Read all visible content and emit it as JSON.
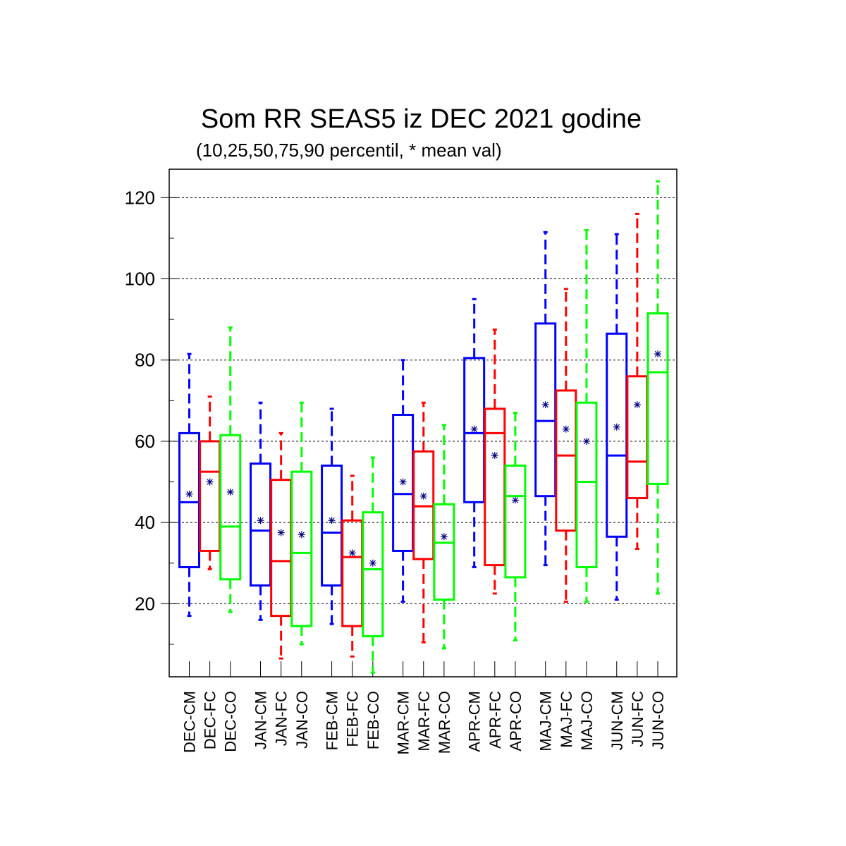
{
  "chart_data": {
    "type": "box",
    "title": "Som RR SEAS5 iz DEC 2021 godine",
    "subtitle": "(10,25,50,75,90 percentil, * mean val)",
    "ylim": [
      2,
      127
    ],
    "yticks": [
      20,
      40,
      60,
      80,
      100,
      120
    ],
    "grid": true,
    "colors": {
      "CM": "#0000ff",
      "FC": "#ff0000",
      "CO": "#00ff00",
      "mean": "#000080"
    },
    "groups": [
      {
        "month": "DEC",
        "boxes": [
          {
            "label": "DEC-CM",
            "kind": "CM",
            "p10": 17,
            "p25": 29,
            "p50": 45,
            "p75": 62,
            "p90": 81.5,
            "mean": 47
          },
          {
            "label": "DEC-FC",
            "kind": "FC",
            "p10": 28.5,
            "p25": 33,
            "p50": 52.5,
            "p75": 60,
            "p90": 71,
            "mean": 50
          },
          {
            "label": "DEC-CO",
            "kind": "CO",
            "p10": 18,
            "p25": 26,
            "p50": 39,
            "p75": 61.5,
            "p90": 88,
            "mean": 47.5
          }
        ]
      },
      {
        "month": "JAN",
        "boxes": [
          {
            "label": "JAN-CM",
            "kind": "CM",
            "p10": 16,
            "p25": 24.5,
            "p50": 38,
            "p75": 54.5,
            "p90": 69.5,
            "mean": 40.5
          },
          {
            "label": "JAN-FC",
            "kind": "FC",
            "p10": 6.5,
            "p25": 17,
            "p50": 30.5,
            "p75": 50.5,
            "p90": 62,
            "mean": 37.5
          },
          {
            "label": "JAN-CO",
            "kind": "CO",
            "p10": 10,
            "p25": 14.5,
            "p50": 32.5,
            "p75": 52.5,
            "p90": 69.5,
            "mean": 37
          }
        ]
      },
      {
        "month": "FEB",
        "boxes": [
          {
            "label": "FEB-CM",
            "kind": "CM",
            "p10": 15,
            "p25": 24.5,
            "p50": 37.5,
            "p75": 54,
            "p90": 68,
            "mean": 40.5
          },
          {
            "label": "FEB-FC",
            "kind": "FC",
            "p10": 7,
            "p25": 14.5,
            "p50": 31.5,
            "p75": 40.5,
            "p90": 51.5,
            "mean": 32.5
          },
          {
            "label": "FEB-CO",
            "kind": "CO",
            "p10": 3,
            "p25": 12,
            "p50": 28.5,
            "p75": 42.5,
            "p90": 56,
            "mean": 30
          }
        ]
      },
      {
        "month": "MAR",
        "boxes": [
          {
            "label": "MAR-CM",
            "kind": "CM",
            "p10": 20.5,
            "p25": 33,
            "p50": 47,
            "p75": 66.5,
            "p90": 80,
            "mean": 50
          },
          {
            "label": "MAR-FC",
            "kind": "FC",
            "p10": 10.5,
            "p25": 31,
            "p50": 44,
            "p75": 57.5,
            "p90": 69.5,
            "mean": 46.5
          },
          {
            "label": "MAR-CO",
            "kind": "CO",
            "p10": 9,
            "p25": 21,
            "p50": 35,
            "p75": 44.5,
            "p90": 64,
            "mean": 36.5
          }
        ]
      },
      {
        "month": "APR",
        "boxes": [
          {
            "label": "APR-CM",
            "kind": "CM",
            "p10": 29,
            "p25": 45,
            "p50": 62,
            "p75": 80.5,
            "p90": 95,
            "mean": 63
          },
          {
            "label": "APR-FC",
            "kind": "FC",
            "p10": 22.5,
            "p25": 29.5,
            "p50": 62,
            "p75": 68,
            "p90": 87.5,
            "mean": 56.5
          },
          {
            "label": "APR-CO",
            "kind": "CO",
            "p10": 11,
            "p25": 26.5,
            "p50": 46.5,
            "p75": 54,
            "p90": 67,
            "mean": 45.5
          }
        ]
      },
      {
        "month": "MAJ",
        "boxes": [
          {
            "label": "MAJ-CM",
            "kind": "CM",
            "p10": 29.5,
            "p25": 46.5,
            "p50": 65,
            "p75": 89,
            "p90": 111.5,
            "mean": 69
          },
          {
            "label": "MAJ-FC",
            "kind": "FC",
            "p10": 20.5,
            "p25": 38,
            "p50": 56.5,
            "p75": 72.5,
            "p90": 97.5,
            "mean": 63
          },
          {
            "label": "MAJ-CO",
            "kind": "CO",
            "p10": 20.5,
            "p25": 29,
            "p50": 50,
            "p75": 69.5,
            "p90": 112,
            "mean": 60
          }
        ]
      },
      {
        "month": "JUN",
        "boxes": [
          {
            "label": "JUN-CM",
            "kind": "CM",
            "p10": 21,
            "p25": 36.5,
            "p50": 56.5,
            "p75": 86.5,
            "p90": 111,
            "mean": 63.5
          },
          {
            "label": "JUN-FC",
            "kind": "FC",
            "p10": 33.5,
            "p25": 46,
            "p50": 55,
            "p75": 76,
            "p90": 116,
            "mean": 69
          },
          {
            "label": "JUN-CO",
            "kind": "CO",
            "p10": 22.5,
            "p25": 49.5,
            "p50": 77,
            "p75": 91.5,
            "p90": 124,
            "mean": 81.5
          }
        ]
      }
    ]
  }
}
